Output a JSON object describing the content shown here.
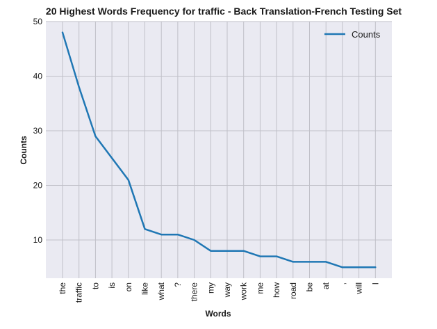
{
  "chart_data": {
    "type": "line",
    "title": "20 Highest Words Frequency for traffic - Back Translation-French Testing Set",
    "xlabel": "Words",
    "ylabel": "Counts",
    "categories": [
      "the",
      "traffic",
      "to",
      "is",
      "on",
      "like",
      "what",
      "?",
      "there",
      "my",
      "way",
      "work",
      "me",
      "how",
      "road",
      "be",
      "at",
      ",",
      "will",
      "I"
    ],
    "series": [
      {
        "name": "Counts",
        "values": [
          48,
          38,
          29,
          25,
          21,
          12,
          11,
          11,
          10,
          8,
          8,
          8,
          7,
          7,
          6,
          6,
          6,
          5,
          5,
          5
        ],
        "color": "#1f77b4"
      }
    ],
    "ylim": [
      3,
      50
    ],
    "yticks": [
      10,
      20,
      30,
      40,
      50
    ],
    "grid": true,
    "legend_position": "top-right",
    "background_color": "#eaeaf2",
    "grid_color": "#c0c0c8"
  }
}
